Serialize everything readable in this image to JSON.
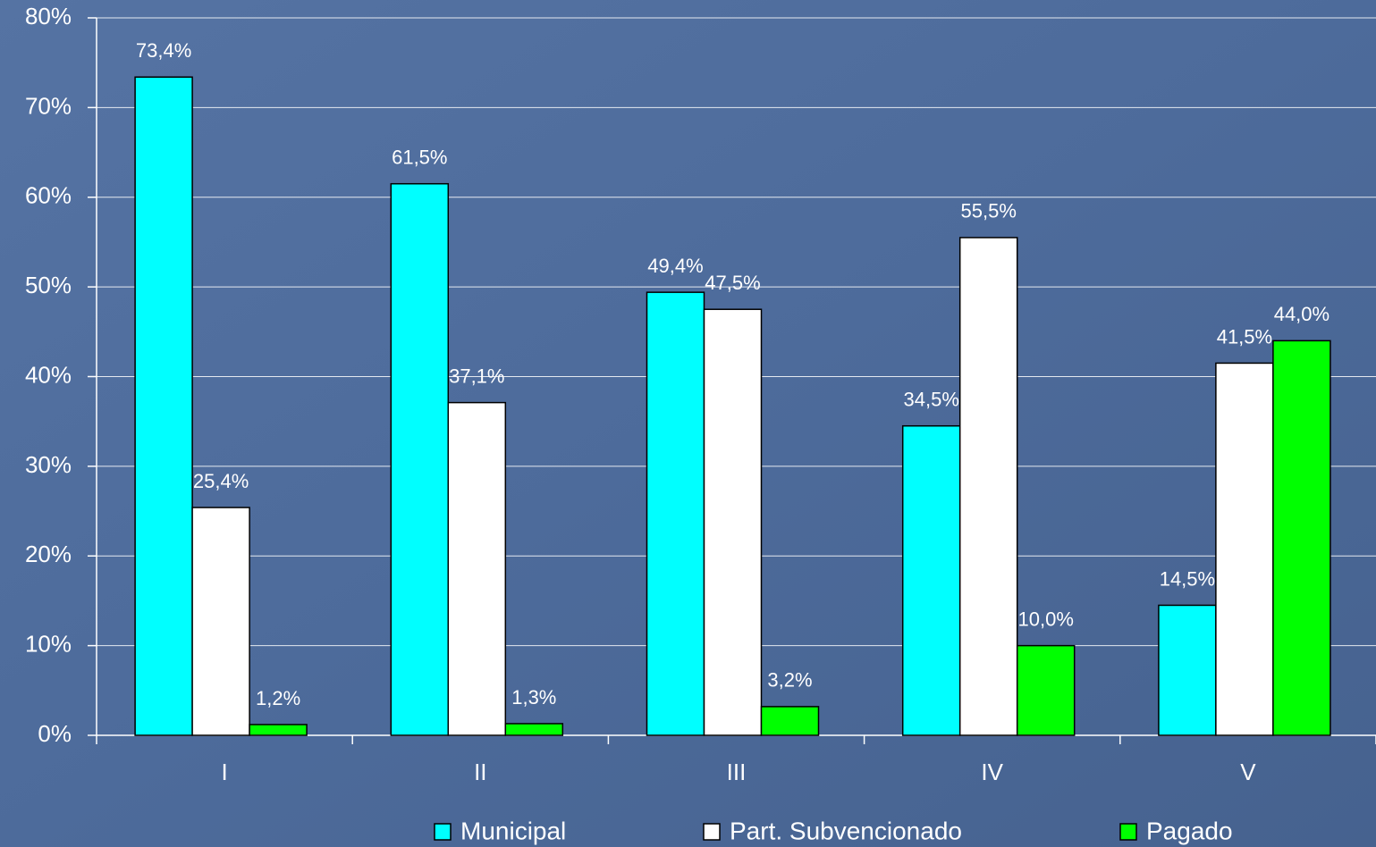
{
  "chart_data": {
    "type": "bar",
    "categories": [
      "I",
      "II",
      "III",
      "IV",
      "V"
    ],
    "series": [
      {
        "name": "Municipal",
        "color": "#00ffff",
        "values": [
          73.4,
          61.5,
          49.4,
          34.5,
          14.5
        ],
        "value_labels": [
          "73,4%",
          "61,5%",
          "49,4%",
          "34,5%",
          "14,5%"
        ]
      },
      {
        "name": "Part. Subvencionado",
        "color": "#ffffff",
        "values": [
          25.4,
          37.1,
          47.5,
          55.5,
          41.5
        ],
        "value_labels": [
          "25,4%",
          "37,1%",
          "47,5%",
          "55,5%",
          "41,5%"
        ]
      },
      {
        "name": "Pagado",
        "color": "#00ff00",
        "values": [
          1.2,
          1.3,
          3.2,
          10.0,
          44.0
        ],
        "value_labels": [
          "1,2%",
          "1,3%",
          "3,2%",
          "10,0%",
          "44,0%"
        ]
      }
    ],
    "ylim": [
      0,
      80
    ],
    "yticks": [
      {
        "value": 0,
        "label": "0%"
      },
      {
        "value": 10,
        "label": "10%"
      },
      {
        "value": 20,
        "label": "20%"
      },
      {
        "value": 30,
        "label": "30%"
      },
      {
        "value": 40,
        "label": "40%"
      },
      {
        "value": 50,
        "label": "50%"
      },
      {
        "value": 60,
        "label": "60%"
      },
      {
        "value": 70,
        "label": "70%"
      },
      {
        "value": 80,
        "label": "80%"
      }
    ],
    "grid": true,
    "legend": "bottom"
  }
}
